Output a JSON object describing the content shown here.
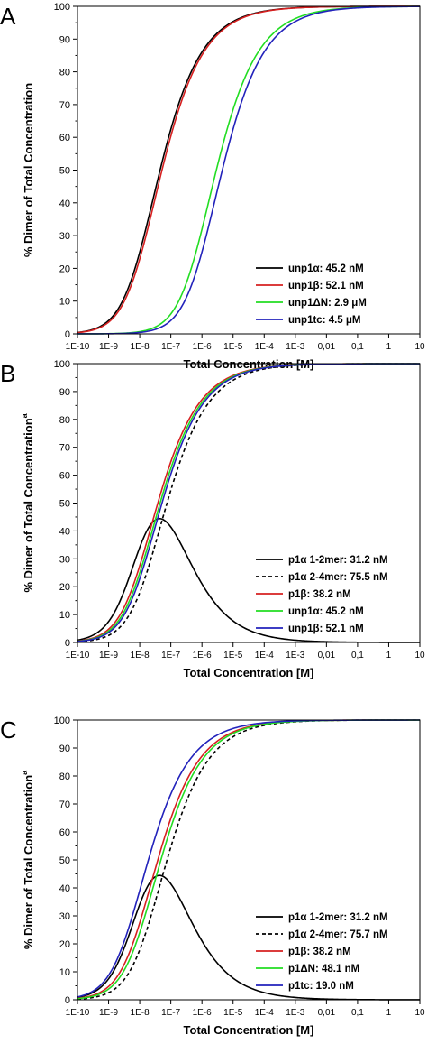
{
  "colors": {
    "black": "#000000",
    "red": "#d62020",
    "green": "#22dd22",
    "blue": "#2222bb"
  },
  "chart_data": [
    {
      "panel_letter": "A",
      "type": "line",
      "xlabel": "Total Concentration [M]",
      "ylabel": "% Dimer of Total Concentration",
      "x_scale": "log",
      "xlim": [
        1e-10,
        10
      ],
      "ylim": [
        0,
        100
      ],
      "x_ticks": [
        "1E-10",
        "1E-9",
        "1E-8",
        "1E-7",
        "1E-6",
        "1E-5",
        "1E-4",
        "1E-3",
        "0,01",
        "0,1",
        "1",
        "10"
      ],
      "y_ticks": [
        "0",
        "10",
        "20",
        "30",
        "40",
        "50",
        "60",
        "70",
        "80",
        "90",
        "100"
      ],
      "grid": false,
      "legend_position": "bottom-right",
      "series": [
        {
          "name": "unp1α: 45.2 nM",
          "color": "#000000",
          "dash": "solid",
          "kind": "dimer",
          "kd": 4.52e-08,
          "x": [
            1e-10,
            1e-09,
            1e-08,
            1e-07,
            1e-06,
            1e-05,
            0.0001,
            0.001,
            0.01,
            0.1,
            1,
            10
          ],
          "y": [
            0.4,
            3.8,
            24.6,
            63.4,
            88.6,
            96.8,
            99.0,
            99.7,
            99.9,
            100,
            100,
            100
          ]
        },
        {
          "name": "unp1β: 52.1 nM",
          "color": "#d62020",
          "dash": "solid",
          "kind": "dimer",
          "kd": 5.21e-08,
          "x": [
            1e-10,
            1e-09,
            1e-08,
            1e-07,
            1e-06,
            1e-05,
            0.0001,
            0.001,
            0.01,
            0.1,
            1,
            10
          ],
          "y": [
            0.4,
            3.4,
            22.8,
            61.2,
            87.6,
            96.2,
            98.8,
            99.6,
            99.9,
            100,
            100,
            100
          ]
        },
        {
          "name": "unp1ΔN: 2.9 μM",
          "color": "#22dd22",
          "dash": "solid",
          "kind": "dimer",
          "kd": 2.9e-06,
          "x": [
            1e-10,
            1e-09,
            1e-08,
            1e-07,
            1e-06,
            1e-05,
            0.0001,
            0.001,
            0.01,
            0.1,
            1,
            10
          ],
          "y": [
            0,
            0.1,
            0.7,
            6.3,
            37.1,
            72.6,
            91.2,
            97.3,
            99.2,
            99.7,
            99.9,
            100
          ]
        },
        {
          "name": "unp1tc: 4.5 μM",
          "color": "#2222bb",
          "dash": "solid",
          "kind": "dimer",
          "kd": 4.5e-06,
          "x": [
            1e-10,
            1e-09,
            1e-08,
            1e-07,
            1e-06,
            1e-05,
            0.0001,
            0.001,
            0.01,
            0.1,
            1,
            10
          ],
          "y": [
            0,
            0,
            0.4,
            4.2,
            29.1,
            66.6,
            88.9,
            96.5,
            98.9,
            99.7,
            99.9,
            100
          ]
        }
      ]
    },
    {
      "panel_letter": "B",
      "type": "line",
      "xlabel": "Total Concentration [M]",
      "ylabel": "% Dimer of Total Concentration",
      "ylabel_superscript": "a",
      "x_scale": "log",
      "xlim": [
        1e-10,
        10
      ],
      "ylim": [
        0,
        100
      ],
      "x_ticks": [
        "1E-10",
        "1E-9",
        "1E-8",
        "1E-7",
        "1E-6",
        "1E-5",
        "1E-4",
        "1E-3",
        "0,01",
        "0,1",
        "1",
        "10"
      ],
      "y_ticks": [
        "0",
        "10",
        "20",
        "30",
        "40",
        "50",
        "60",
        "70",
        "80",
        "90",
        "100"
      ],
      "grid": false,
      "legend_position": "bottom-right",
      "series": [
        {
          "name": "p1α 1-2mer: 31.2 nM",
          "color": "#000000",
          "dash": "solid",
          "kind": "bell",
          "kd": 3.12e-08,
          "kd2": 7.55e-08,
          "x": [
            1e-10,
            1e-09,
            1e-08,
            3e-08,
            1e-07,
            1e-06,
            1e-05,
            0.0001,
            0.001,
            0.01,
            0.1,
            1,
            10
          ],
          "y": [
            0.6,
            5.0,
            26.8,
            37.6,
            31.3,
            10.1,
            3.0,
            0.9,
            0.3,
            0.1,
            0,
            0,
            0
          ]
        },
        {
          "name": "p1α 2-4mer: 75.5 nM",
          "color": "#000000",
          "dash": "dashed",
          "kind": "dimer",
          "kd": 7.55e-08,
          "x": [
            1e-10,
            1e-09,
            1e-08,
            1e-07,
            1e-06,
            1e-05,
            0.0001,
            0.001,
            0.01,
            0.1,
            1,
            10
          ],
          "y": [
            0.3,
            2.6,
            18.4,
            56.8,
            84.8,
            95.0,
            98.4,
            99.5,
            99.8,
            100,
            100,
            100
          ]
        },
        {
          "name": "p1β: 38.2 nM",
          "color": "#d62020",
          "dash": "solid",
          "kind": "dimer",
          "kd": 3.82e-08,
          "x": [
            1e-10,
            1e-09,
            1e-08,
            1e-07,
            1e-06,
            1e-05,
            0.0001,
            0.001,
            0.01,
            0.1,
            1,
            10
          ],
          "y": [
            0.5,
            4.4,
            27.0,
            66.0,
            89.5,
            96.6,
            98.9,
            99.7,
            99.9,
            100,
            100,
            100
          ]
        },
        {
          "name": "unp1α: 45.2 nM",
          "color": "#22dd22",
          "dash": "solid",
          "kind": "dimer",
          "kd": 4.52e-08,
          "x": [
            1e-10,
            1e-09,
            1e-08,
            1e-07,
            1e-06,
            1e-05,
            0.0001,
            0.001,
            0.01,
            0.1,
            1,
            10
          ],
          "y": [
            0.4,
            3.8,
            24.6,
            63.4,
            88.6,
            96.3,
            98.8,
            99.6,
            99.9,
            100,
            100,
            100
          ]
        },
        {
          "name": "unp1β: 52.1 nM",
          "color": "#2222bb",
          "dash": "solid",
          "kind": "dimer",
          "kd": 5.21e-08,
          "x": [
            1e-10,
            1e-09,
            1e-08,
            1e-07,
            1e-06,
            1e-05,
            0.0001,
            0.001,
            0.01,
            0.1,
            1,
            10
          ],
          "y": [
            0.4,
            3.4,
            22.8,
            61.2,
            87.6,
            96.0,
            98.7,
            99.6,
            99.9,
            100,
            100,
            100
          ]
        }
      ]
    },
    {
      "panel_letter": "C",
      "type": "line",
      "xlabel": "Total Concentration [M]",
      "ylabel": "% Dimer of Total Concentration",
      "ylabel_superscript": "a",
      "x_scale": "log",
      "xlim": [
        1e-10,
        10
      ],
      "ylim": [
        0,
        100
      ],
      "x_ticks": [
        "1E-10",
        "1E-9",
        "1E-8",
        "1E-7",
        "1E-6",
        "1E-5",
        "1E-4",
        "1E-3",
        "0,01",
        "0,1",
        "1",
        "10"
      ],
      "y_ticks": [
        "0",
        "10",
        "20",
        "30",
        "40",
        "50",
        "60",
        "70",
        "80",
        "90",
        "100"
      ],
      "grid": false,
      "legend_position": "bottom-right",
      "series": [
        {
          "name": "p1α 1-2mer: 31.2 nM",
          "color": "#000000",
          "dash": "solid",
          "kind": "bell",
          "kd": 3.12e-08,
          "kd2": 7.57e-08,
          "x": [
            1e-10,
            1e-09,
            1e-08,
            3e-08,
            1e-07,
            1e-06,
            1e-05,
            0.0001,
            0.001,
            0.01,
            0.1,
            1,
            10
          ],
          "y": [
            0.6,
            5.0,
            26.8,
            37.6,
            31.3,
            10.1,
            3.0,
            0.9,
            0.3,
            0.1,
            0,
            0,
            0
          ]
        },
        {
          "name": "p1α 2-4mer: 75.7 nM",
          "color": "#000000",
          "dash": "dashed",
          "kind": "dimer",
          "kd": 7.57e-08,
          "x": [
            1e-10,
            1e-09,
            1e-08,
            1e-07,
            1e-06,
            1e-05,
            0.0001,
            0.001,
            0.01,
            0.1,
            1,
            10
          ],
          "y": [
            0.3,
            2.6,
            18.4,
            56.8,
            84.8,
            95.0,
            98.4,
            99.5,
            99.8,
            100,
            100,
            100
          ]
        },
        {
          "name": "p1β: 38.2 nM",
          "color": "#d62020",
          "dash": "solid",
          "kind": "dimer",
          "kd": 3.82e-08,
          "x": [
            1e-10,
            1e-09,
            1e-08,
            1e-07,
            1e-06,
            1e-05,
            0.0001,
            0.001,
            0.01,
            0.1,
            1,
            10
          ],
          "y": [
            0.5,
            4.4,
            27.0,
            66.0,
            89.5,
            96.6,
            98.9,
            99.7,
            99.9,
            100,
            100,
            100
          ]
        },
        {
          "name": "p1ΔN: 48.1 nM",
          "color": "#22dd22",
          "dash": "solid",
          "kind": "dimer",
          "kd": 4.81e-08,
          "x": [
            1e-10,
            1e-09,
            1e-08,
            1e-07,
            1e-06,
            1e-05,
            0.0001,
            0.001,
            0.01,
            0.1,
            1,
            10
          ],
          "y": [
            0.4,
            3.6,
            23.8,
            62.4,
            88.1,
            96.2,
            98.8,
            99.6,
            99.9,
            100,
            100,
            100
          ]
        },
        {
          "name": "p1tc: 19.0 nM",
          "color": "#2222bb",
          "dash": "solid",
          "kind": "dimer",
          "kd": 1.9e-08,
          "x": [
            1e-10,
            1e-09,
            1e-08,
            1e-07,
            1e-06,
            1e-05,
            0.0001,
            0.001,
            0.01,
            0.1,
            1,
            10
          ],
          "y": [
            1.0,
            8.2,
            38.3,
            75.6,
            93.0,
            97.9,
            99.3,
            99.8,
            99.9,
            100,
            100,
            100
          ]
        }
      ]
    }
  ]
}
